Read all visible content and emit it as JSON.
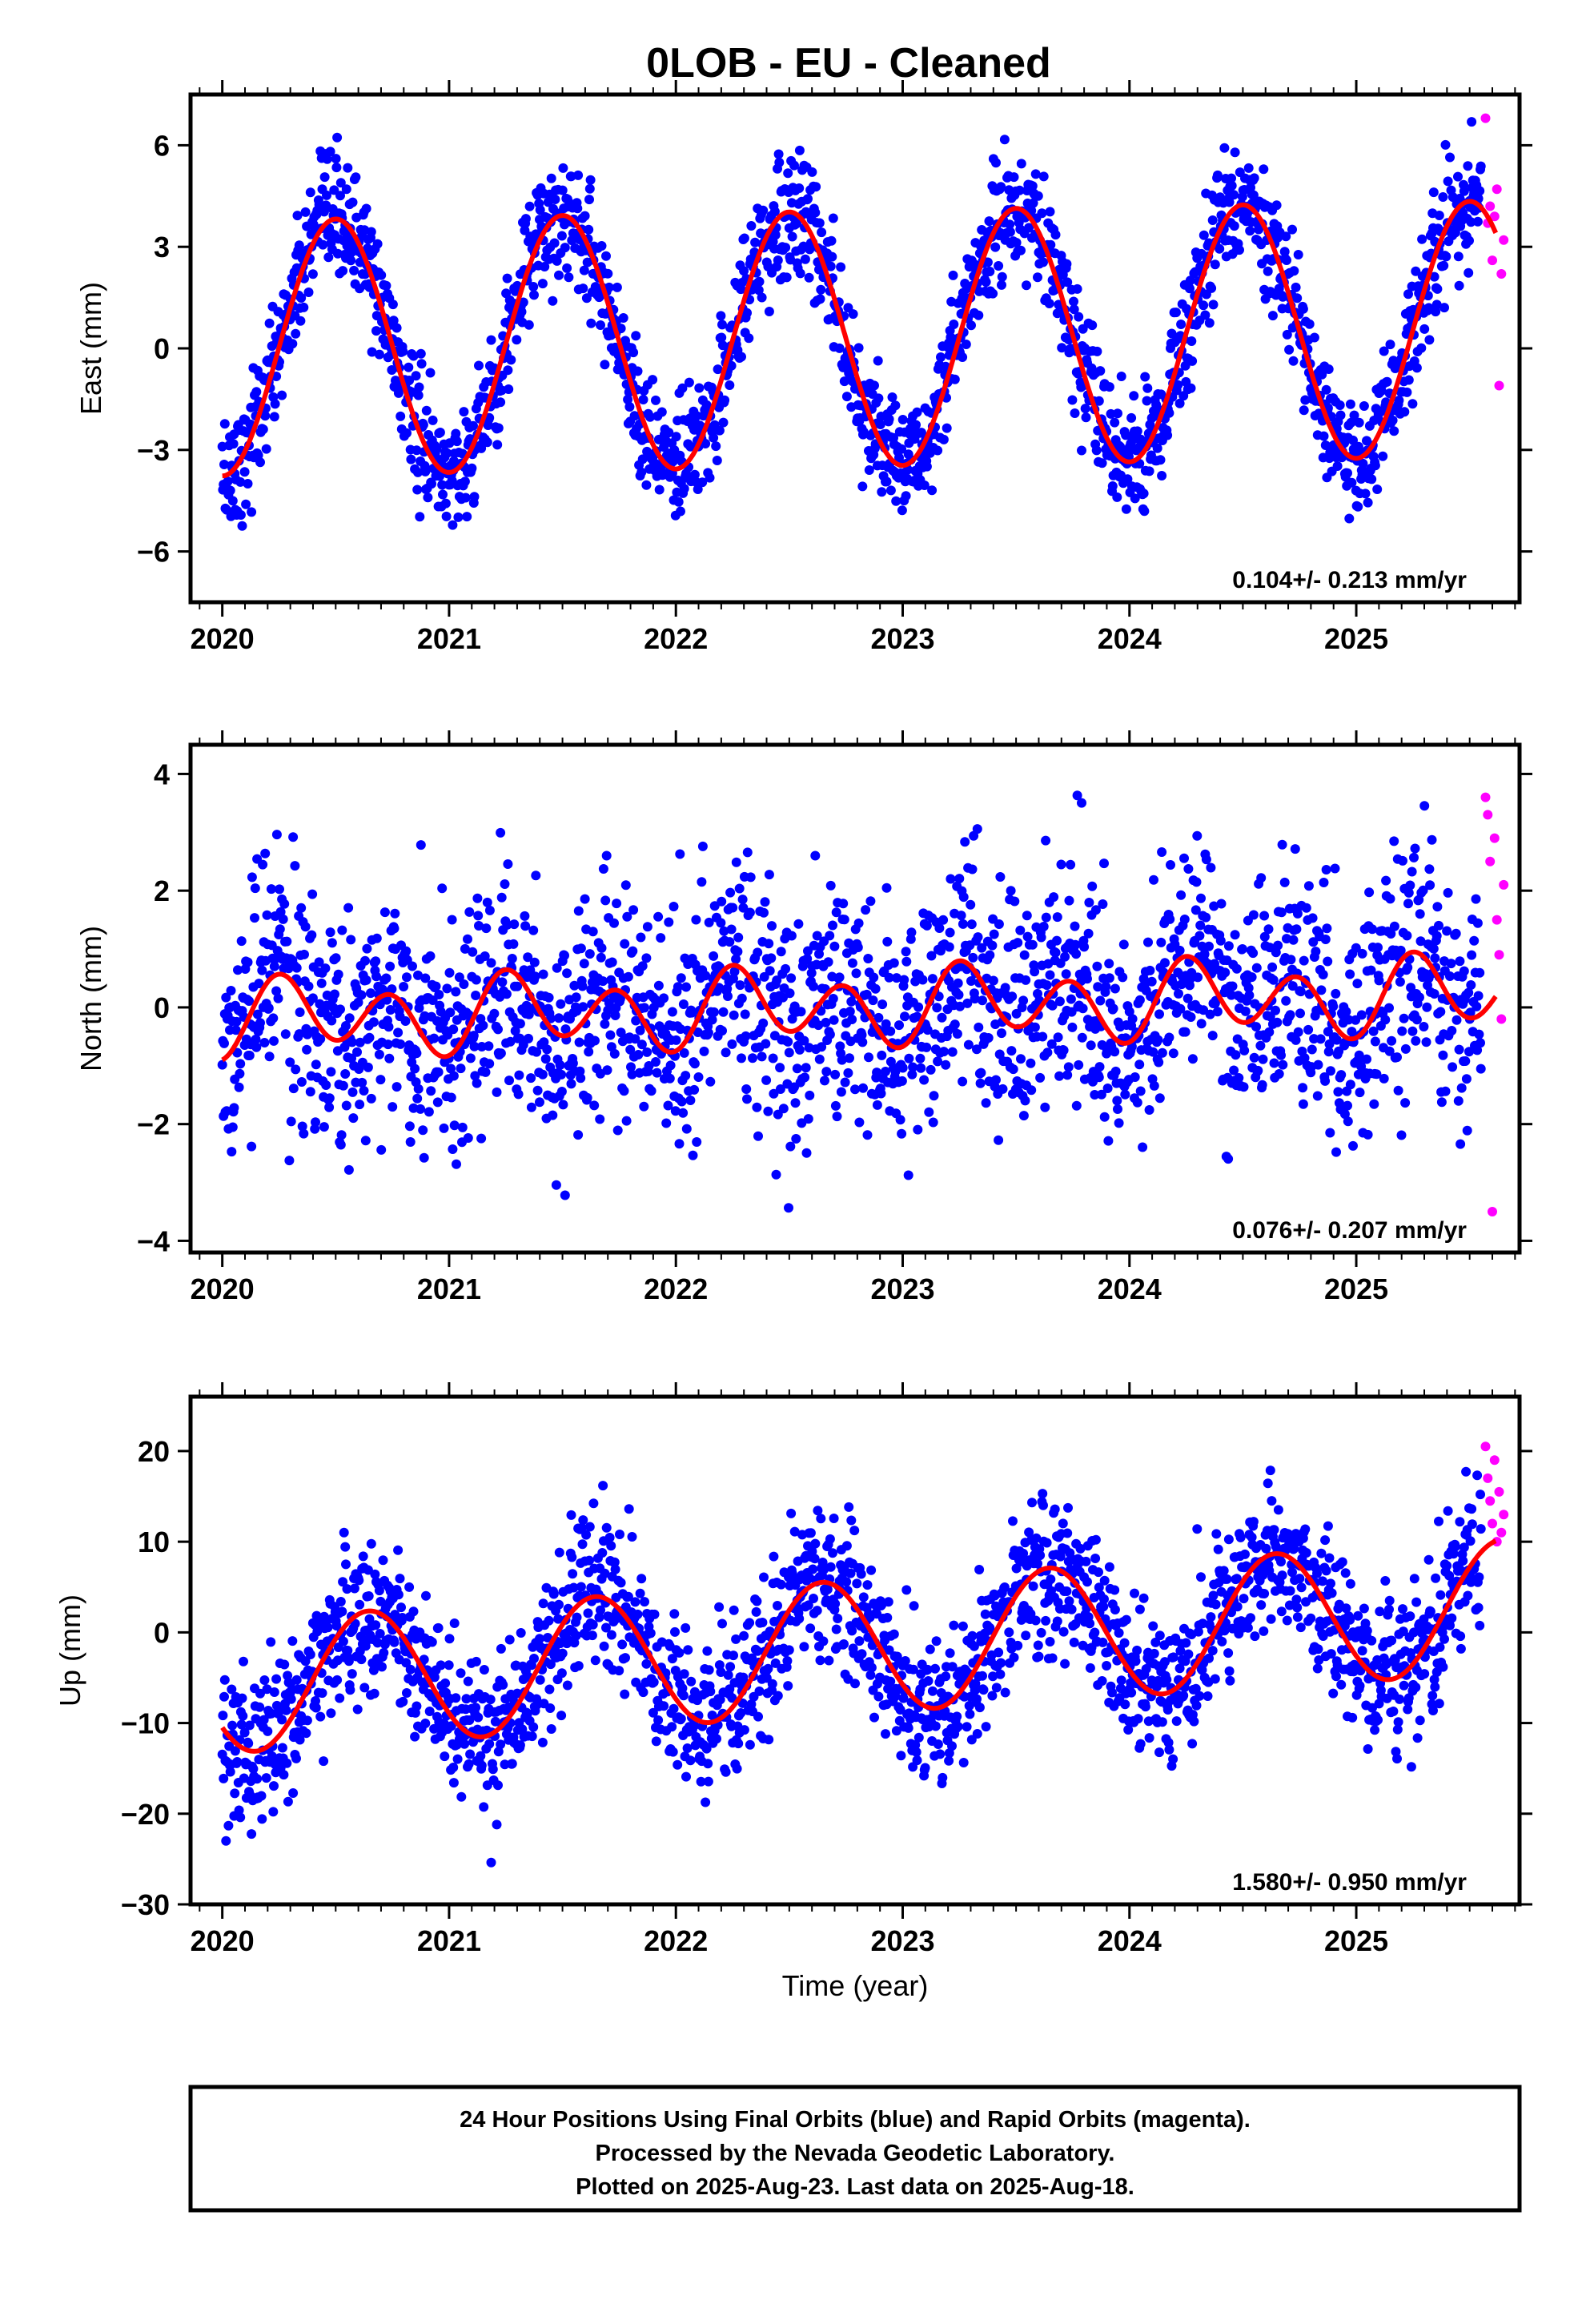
{
  "title": "0LOB  - EU - Cleaned",
  "footer": {
    "lines": [
      "24 Hour Positions Using Final Orbits (blue) and Rapid Orbits (magenta).",
      "Processed by the Nevada Geodetic Laboratory.",
      "Plotted on 2025-Aug-23. Last data on 2025-Aug-18."
    ]
  },
  "colors": {
    "final": "#0000ff",
    "rapid": "#ff00ff",
    "model": "#ff0000",
    "frame": "#000000"
  },
  "chart_data": [
    {
      "type": "scatter",
      "name": "east",
      "ylabel": "East (mm)",
      "xlabel": "",
      "xlim": [
        2019.86,
        2025.72
      ],
      "ylim": [
        -7.5,
        7.5
      ],
      "xticks": [
        2020,
        2021,
        2022,
        2023,
        2024,
        2025
      ],
      "yticks": [
        -6,
        -3,
        0,
        3,
        6
      ],
      "yticklabels": [
        "−6",
        "−3",
        "0",
        "3",
        "6"
      ],
      "rate_text": "0.104+/- 0.213 mm/yr",
      "model": {
        "trend_mm_per_yr": 0.104,
        "offset_mm": 0.0,
        "annual_cos": -3.77,
        "annual_sin": 0.0,
        "semiannual_cos": 0.0,
        "semiannual_sin": 0.0
      },
      "noise_mm": 0.9,
      "final_range": [
        2020.0,
        2025.55
      ],
      "rapid": {
        "x": [
          2025.57,
          2025.58,
          2025.59,
          2025.6,
          2025.61,
          2025.62,
          2025.63,
          2025.64,
          2025.65
        ],
        "y": [
          6.8,
          3.7,
          4.2,
          2.6,
          3.9,
          4.7,
          -1.1,
          2.2,
          3.2
        ]
      }
    },
    {
      "type": "scatter",
      "name": "north",
      "ylabel": "North (mm)",
      "xlabel": "",
      "xlim": [
        2019.86,
        2025.72
      ],
      "ylim": [
        -4.2,
        4.5
      ],
      "xticks": [
        2020,
        2021,
        2022,
        2023,
        2024,
        2025
      ],
      "yticks": [
        -4,
        -2,
        0,
        2,
        4
      ],
      "yticklabels": [
        "−4",
        "−2",
        "0",
        "2",
        "4"
      ],
      "rate_text": "0.076+/- 0.207 mm/yr",
      "model": {
        "trend_mm_per_yr": 0.076,
        "offset_mm": -0.2,
        "annual_cos": -0.15,
        "annual_sin": 0.2,
        "semiannual_cos": -0.55,
        "semiannual_sin": 0.05
      },
      "noise_mm": 1.0,
      "final_range": [
        2020.0,
        2025.55
      ],
      "rapid": {
        "x": [
          2025.57,
          2025.58,
          2025.59,
          2025.6,
          2025.61,
          2025.62,
          2025.63,
          2025.64,
          2025.65
        ],
        "y": [
          3.6,
          3.3,
          2.5,
          -3.5,
          2.9,
          1.5,
          0.9,
          -0.2,
          2.1
        ]
      }
    },
    {
      "type": "scatter",
      "name": "up",
      "ylabel": "Up (mm)",
      "xlabel": "Time (year)",
      "xlim": [
        2019.86,
        2025.72
      ],
      "ylim": [
        -30,
        26
      ],
      "xticks": [
        2020,
        2021,
        2022,
        2023,
        2024,
        2025
      ],
      "yticks": [
        -30,
        -20,
        -10,
        0,
        10,
        20
      ],
      "yticklabels": [
        "−30",
        "−20",
        "−10",
        "0",
        "10",
        "20"
      ],
      "rate_text": "1.580+/- 0.950 mm/yr",
      "model": {
        "trend_mm_per_yr": 1.58,
        "offset_mm": -6.0,
        "annual_cos": -4.5,
        "annual_sin": -5.8,
        "semiannual_cos": 0.0,
        "semiannual_sin": 0.0
      },
      "noise_mm": 4.2,
      "final_range": [
        2020.0,
        2025.55
      ],
      "rapid": {
        "x": [
          2025.57,
          2025.58,
          2025.59,
          2025.6,
          2025.61,
          2025.62,
          2025.63,
          2025.64,
          2025.65
        ],
        "y": [
          20.5,
          17.0,
          14.5,
          12.0,
          19.0,
          10.0,
          15.5,
          11.0,
          13.0
        ]
      }
    }
  ]
}
